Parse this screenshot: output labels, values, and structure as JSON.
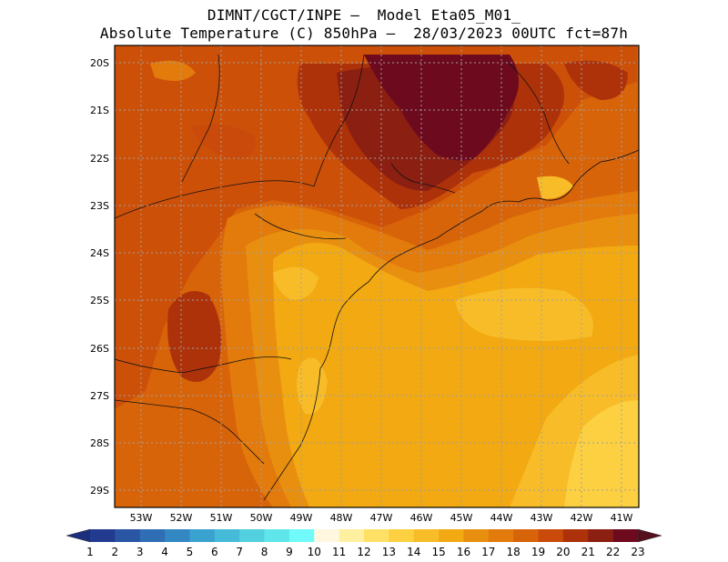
{
  "title_line1": "DIMNT/CGCT/INPE –  Model Eta05_M01_",
  "title_line2": "Absolute Temperature (C) 850hPa –  28/03/2023 00UTC fct=87h",
  "lat_labels": [
    "20S",
    "21S",
    "22S",
    "23S",
    "24S",
    "25S",
    "26S",
    "27S",
    "28S",
    "29S"
  ],
  "lon_labels": [
    "53W",
    "52W",
    "51W",
    "50W",
    "49W",
    "48W",
    "47W",
    "46W",
    "45W",
    "44W",
    "43W",
    "42W",
    "41W"
  ],
  "colorbar": {
    "labels": [
      "1",
      "2",
      "3",
      "4",
      "5",
      "6",
      "7",
      "8",
      "9",
      "10",
      "11",
      "12",
      "13",
      "14",
      "15",
      "16",
      "17",
      "18",
      "19",
      "20",
      "21",
      "22",
      "23"
    ],
    "colors": [
      "#233b8f",
      "#2a55a5",
      "#2f6db5",
      "#3387c2",
      "#3aa2cf",
      "#45bbd9",
      "#52d0e0",
      "#5ee6ea",
      "#70fafa",
      "#fff7e0",
      "#fff0a0",
      "#ffe066",
      "#fcd040",
      "#f7bc28",
      "#f2a912",
      "#e98f10",
      "#e27a0c",
      "#d8640a",
      "#c94a0a",
      "#ad320a",
      "#8b1f12",
      "#6d0a1e"
    ],
    "left_arrow_color": "#1c2f7d",
    "right_arrow_color": "#55101e"
  }
}
